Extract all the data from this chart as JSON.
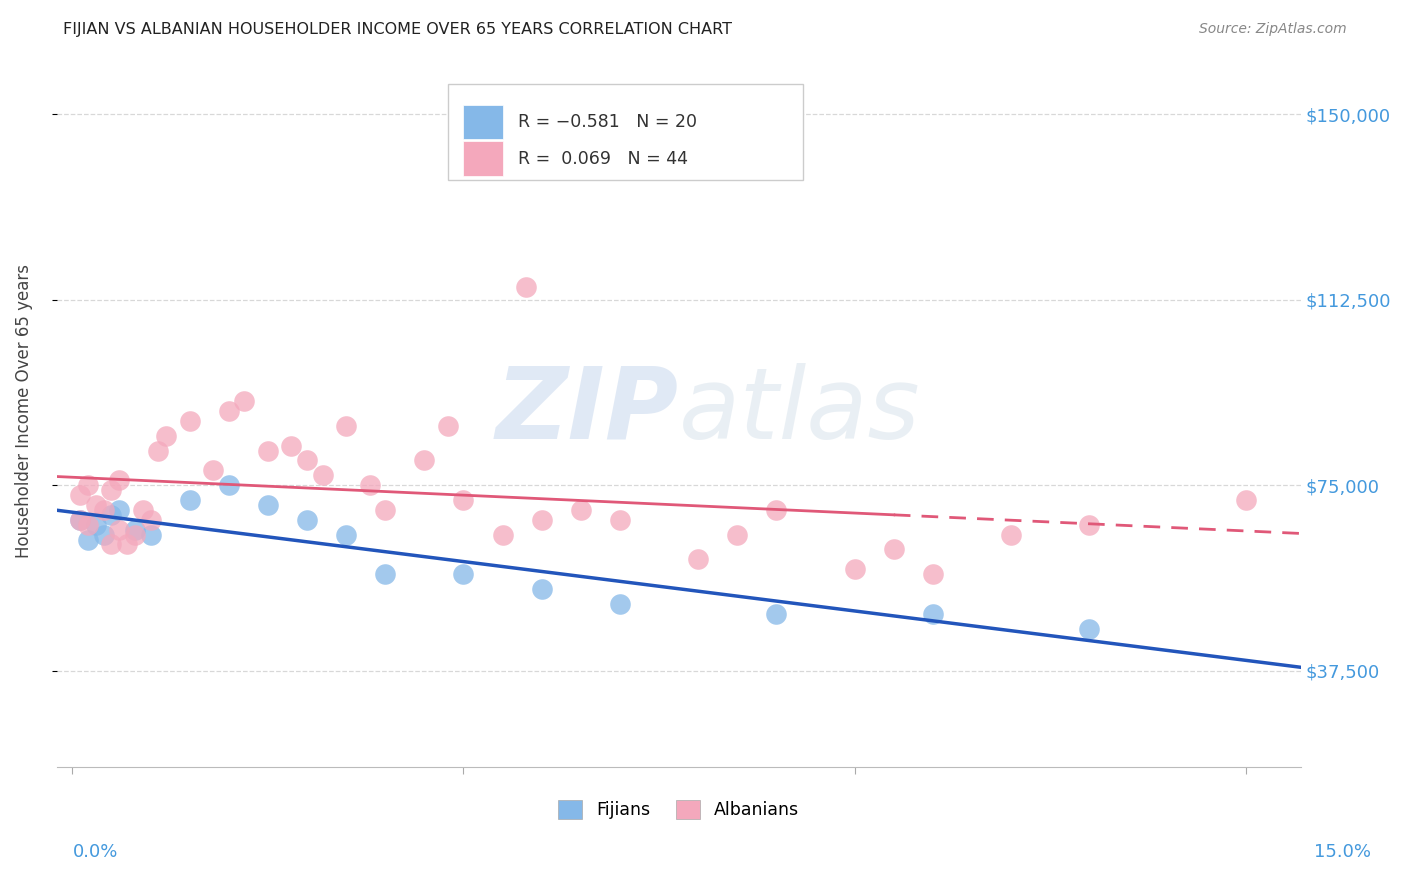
{
  "title": "FIJIAN VS ALBANIAN HOUSEHOLDER INCOME OVER 65 YEARS CORRELATION CHART",
  "source": "Source: ZipAtlas.com",
  "ylabel": "Householder Income Over 65 years",
  "ytick_labels": [
    "$37,500",
    "$75,000",
    "$112,500",
    "$150,000"
  ],
  "ytick_values": [
    37500,
    75000,
    112500,
    150000
  ],
  "ymin": 18000,
  "ymax": 162000,
  "xmin": -0.002,
  "xmax": 0.157,
  "fijian_color": "#85b8e8",
  "albanian_color": "#f4a8bc",
  "fijian_line_color": "#2255bb",
  "albanian_line_color": "#e05878",
  "fijian_x": [
    0.001,
    0.002,
    0.003,
    0.004,
    0.005,
    0.006,
    0.008,
    0.01,
    0.015,
    0.02,
    0.025,
    0.03,
    0.035,
    0.04,
    0.05,
    0.06,
    0.07,
    0.09,
    0.11,
    0.13
  ],
  "fijian_y": [
    68000,
    64000,
    67000,
    65000,
    69000,
    70000,
    66000,
    65000,
    72000,
    75000,
    71000,
    68000,
    65000,
    57000,
    57000,
    54000,
    51000,
    49000,
    49000,
    46000
  ],
  "albanian_x": [
    0.001,
    0.001,
    0.002,
    0.002,
    0.003,
    0.004,
    0.005,
    0.005,
    0.006,
    0.006,
    0.007,
    0.008,
    0.009,
    0.01,
    0.011,
    0.012,
    0.015,
    0.018,
    0.02,
    0.022,
    0.025,
    0.028,
    0.03,
    0.032,
    0.035,
    0.038,
    0.04,
    0.045,
    0.048,
    0.05,
    0.055,
    0.058,
    0.06,
    0.065,
    0.07,
    0.08,
    0.085,
    0.09,
    0.1,
    0.105,
    0.11,
    0.12,
    0.13,
    0.15
  ],
  "albanian_y": [
    68000,
    73000,
    75000,
    67000,
    71000,
    70000,
    74000,
    63000,
    76000,
    66000,
    63000,
    65000,
    70000,
    68000,
    82000,
    85000,
    88000,
    78000,
    90000,
    92000,
    82000,
    83000,
    80000,
    77000,
    87000,
    75000,
    70000,
    80000,
    87000,
    72000,
    65000,
    115000,
    68000,
    70000,
    68000,
    60000,
    65000,
    70000,
    58000,
    62000,
    57000,
    65000,
    67000,
    72000
  ],
  "watermark_zip": "ZIP",
  "watermark_atlas": "atlas",
  "background_color": "#ffffff",
  "grid_color": "#d8d8d8"
}
